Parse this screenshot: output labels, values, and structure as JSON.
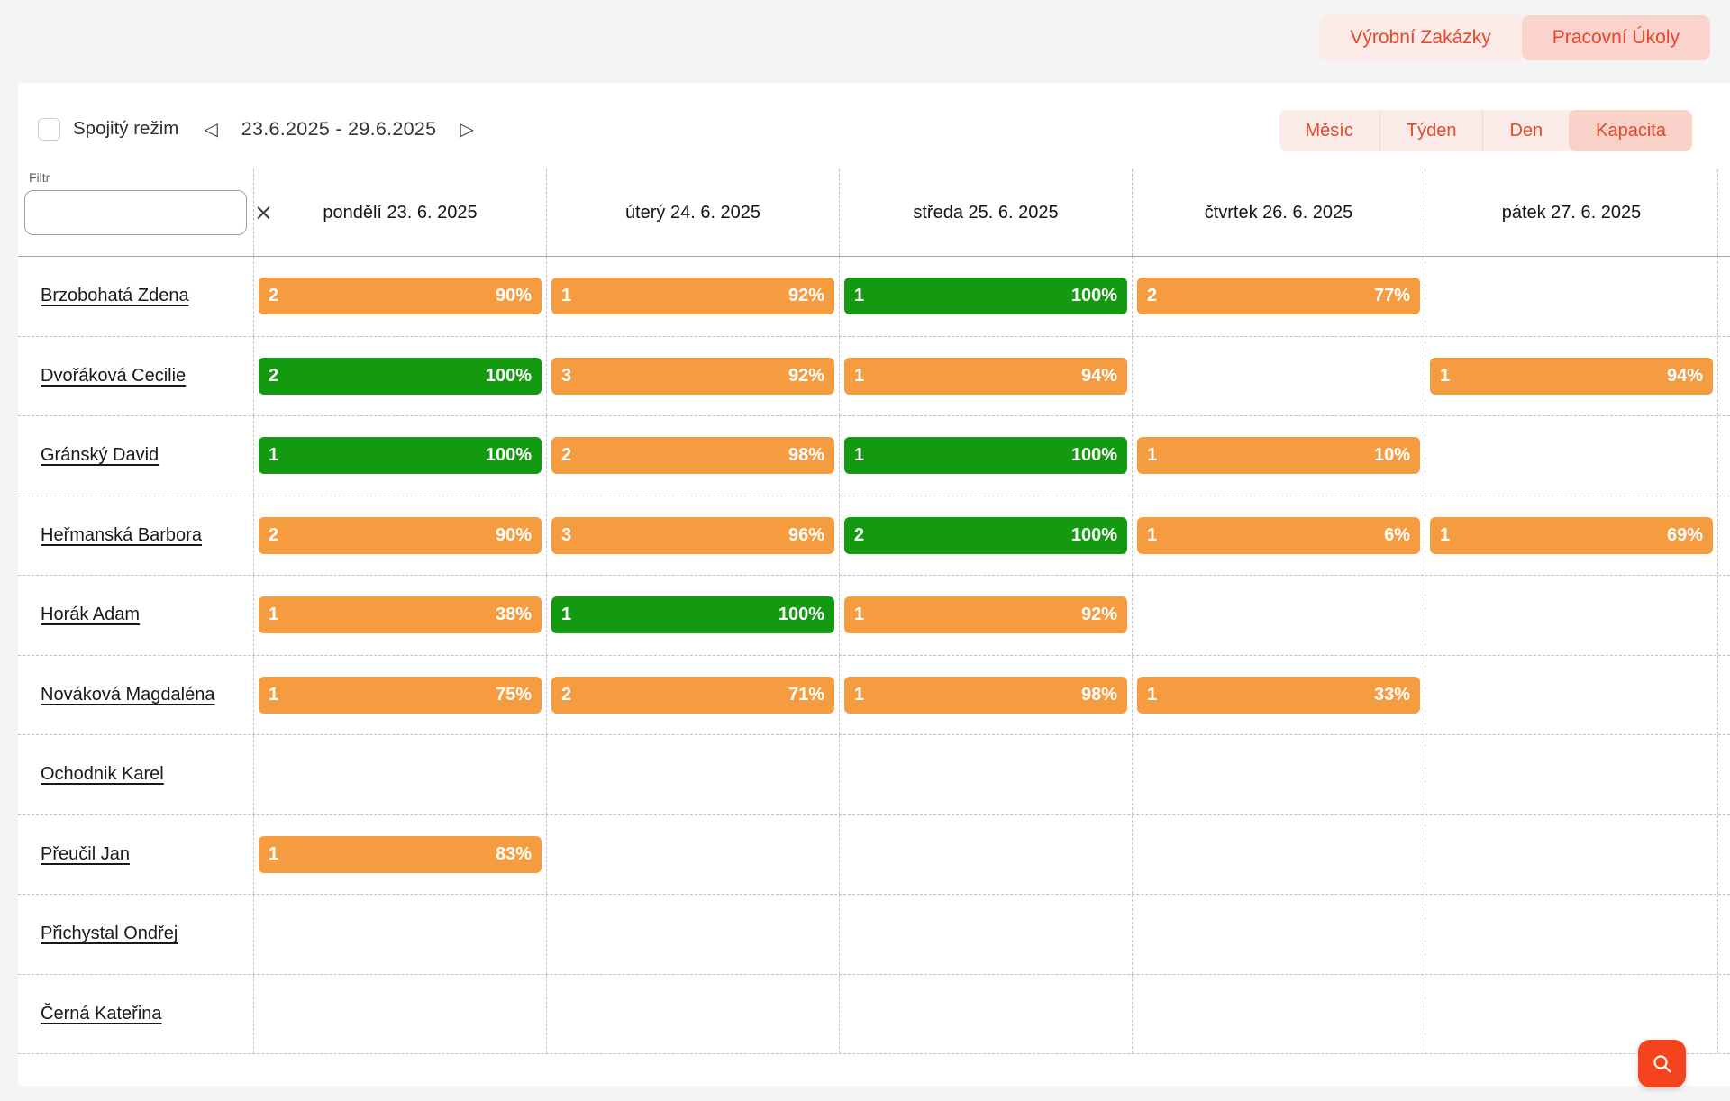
{
  "tabs": [
    {
      "label": "Výrobní Zakázky",
      "selected": false
    },
    {
      "label": "Pracovní Úkoly",
      "selected": true
    }
  ],
  "toolbar": {
    "continuous_mode_label": "Spojitý režim",
    "continuous_mode_checked": false,
    "prev_icon": "◁",
    "next_icon": "▷",
    "date_range": "23.6.2025 - 29.6.2025",
    "views": [
      {
        "label": "Měsíc",
        "selected": false
      },
      {
        "label": "Týden",
        "selected": false
      },
      {
        "label": "Den",
        "selected": false
      },
      {
        "label": "Kapacita",
        "selected": true
      }
    ]
  },
  "filter": {
    "label": "Filtr",
    "value": "",
    "clear_icon": "×"
  },
  "grid": {
    "day_headers": [
      "pondělí 23. 6. 2025",
      "úterý 24. 6. 2025",
      "středa 25. 6. 2025",
      "čtvrtek 26. 6. 2025",
      "pátek 27. 6. 2025"
    ],
    "rows": [
      {
        "name": "Brzobohatá Zdena",
        "cells": [
          {
            "count": "2",
            "pct": "90%",
            "status": "partial"
          },
          {
            "count": "1",
            "pct": "92%",
            "status": "partial"
          },
          {
            "count": "1",
            "pct": "100%",
            "status": "full"
          },
          {
            "count": "2",
            "pct": "77%",
            "status": "partial"
          },
          null
        ]
      },
      {
        "name": "Dvořáková Cecilie",
        "cells": [
          {
            "count": "2",
            "pct": "100%",
            "status": "full"
          },
          {
            "count": "3",
            "pct": "92%",
            "status": "partial"
          },
          {
            "count": "1",
            "pct": "94%",
            "status": "partial"
          },
          null,
          {
            "count": "1",
            "pct": "94%",
            "status": "partial"
          }
        ]
      },
      {
        "name": "Gránský David",
        "cells": [
          {
            "count": "1",
            "pct": "100%",
            "status": "full"
          },
          {
            "count": "2",
            "pct": "98%",
            "status": "partial"
          },
          {
            "count": "1",
            "pct": "100%",
            "status": "full"
          },
          {
            "count": "1",
            "pct": "10%",
            "status": "partial"
          },
          null
        ]
      },
      {
        "name": "Heřmanská Barbora",
        "cells": [
          {
            "count": "2",
            "pct": "90%",
            "status": "partial"
          },
          {
            "count": "3",
            "pct": "96%",
            "status": "partial"
          },
          {
            "count": "2",
            "pct": "100%",
            "status": "full"
          },
          {
            "count": "1",
            "pct": "6%",
            "status": "partial"
          },
          {
            "count": "1",
            "pct": "69%",
            "status": "partial"
          }
        ]
      },
      {
        "name": "Horák Adam",
        "cells": [
          {
            "count": "1",
            "pct": "38%",
            "status": "partial"
          },
          {
            "count": "1",
            "pct": "100%",
            "status": "full"
          },
          {
            "count": "1",
            "pct": "92%",
            "status": "partial"
          },
          null,
          null
        ]
      },
      {
        "name": "Nováková Magdaléna",
        "cells": [
          {
            "count": "1",
            "pct": "75%",
            "status": "partial"
          },
          {
            "count": "2",
            "pct": "71%",
            "status": "partial"
          },
          {
            "count": "1",
            "pct": "98%",
            "status": "partial"
          },
          {
            "count": "1",
            "pct": "33%",
            "status": "partial"
          },
          null
        ]
      },
      {
        "name": "Ochodnik Karel",
        "cells": [
          null,
          null,
          null,
          null,
          null
        ]
      },
      {
        "name": "Přeučil Jan",
        "cells": [
          {
            "count": "1",
            "pct": "83%",
            "status": "partial"
          },
          null,
          null,
          null,
          null
        ]
      },
      {
        "name": "Přichystal Ondřej",
        "cells": [
          null,
          null,
          null,
          null,
          null
        ]
      },
      {
        "name": "Černá Kateřina",
        "cells": [
          null,
          null,
          null,
          null,
          null
        ]
      }
    ]
  },
  "colors": {
    "partial": "#F59C41",
    "full": "#149A11",
    "accent": "#E5472B",
    "tab_bg": "#FCEAE7",
    "tab_selected_bg": "#F9D3CC",
    "segment_bg": "#FCECE9",
    "segment_selected_bg": "#F8D1C9",
    "fab": "#F4431D"
  },
  "fab": {
    "icon": "search-icon"
  }
}
